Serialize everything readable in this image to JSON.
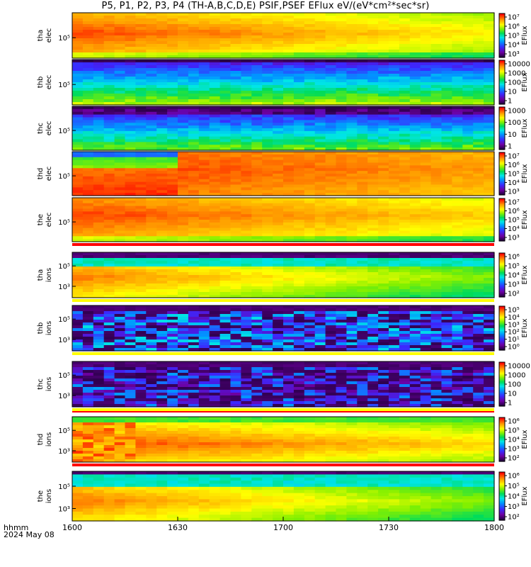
{
  "title": "P5, P1, P2, P3, P4 (TH-A,B,C,D,E) PSIF,PSEF EFlux eV/(eV*cm²*sec*sr)",
  "footer": {
    "line1": "hhmm",
    "line2": "2024 May 08"
  },
  "colorbar_label": "EFlux",
  "chart_data": {
    "type": "heatmap",
    "title": "P5, P1, P2, P3, P4 (TH-A,B,C,D,E) PSIF,PSEF EFlux eV/(eV*cm²*sec*sr)",
    "x_tick_labels": [
      "1600",
      "1630",
      "1700",
      "1730",
      "1800"
    ],
    "x_range_hhmm": [
      "1600",
      "1800"
    ],
    "date": "2024 May 08",
    "colormap": "rainbow (purple-blue-cyan-green-yellow-red)",
    "panels": [
      {
        "probe": "tha",
        "species": "elec",
        "y_ticks": [
          "10⁵"
        ],
        "cbar_ticks": [
          "10⁷",
          "10⁶",
          "10⁵",
          "10⁴",
          "10³"
        ],
        "cbar_label": "EFlux",
        "intensity": "high, red/orange fading to yellow"
      },
      {
        "probe": "thb",
        "species": "elec",
        "y_ticks": [
          "10⁵"
        ],
        "cbar_ticks": [
          "10000",
          "1000",
          "100",
          "10",
          "1"
        ],
        "cbar_label": "EFlux",
        "intensity": "low, blue/green bands"
      },
      {
        "probe": "thc",
        "species": "elec",
        "y_ticks": [
          "10⁵"
        ],
        "cbar_ticks": [
          "1000",
          "100",
          "10",
          "1"
        ],
        "cbar_label": "EFlux",
        "intensity": "low, purple/blue/green bands"
      },
      {
        "probe": "thd",
        "species": "elec",
        "y_ticks": [
          "10⁵"
        ],
        "cbar_ticks": [
          "10⁷",
          "10⁶",
          "10⁵",
          "10⁴",
          "10³"
        ],
        "cbar_label": "EFlux",
        "intensity": "high, red"
      },
      {
        "probe": "the",
        "species": "elec",
        "y_ticks": [
          "10⁵"
        ],
        "cbar_ticks": [
          "10⁷",
          "10⁶",
          "10⁵",
          "10⁴",
          "10³"
        ],
        "cbar_label": "EFlux",
        "intensity": "high, red/orange"
      },
      {
        "probe": "tha",
        "species": "ions",
        "y_ticks": [
          "10⁵",
          "10³"
        ],
        "cbar_ticks": [
          "10⁶",
          "10⁵",
          "10⁴",
          "10³",
          "10²"
        ],
        "cbar_label": "EFlux",
        "intensity": "green top, red/yellow middle"
      },
      {
        "probe": "thb",
        "species": "ions",
        "y_ticks": [
          "10⁵",
          "10³"
        ],
        "cbar_ticks": [
          "10⁵",
          "10⁴",
          "10³",
          "10²",
          "10¹",
          "10⁰"
        ],
        "cbar_label": "EFlux",
        "intensity": "low, purple/blue"
      },
      {
        "probe": "thc",
        "species": "ions",
        "y_ticks": [
          "10⁵",
          "10³"
        ],
        "cbar_ticks": [
          "10000",
          "1000",
          "100",
          "10",
          "1"
        ],
        "cbar_label": "",
        "intensity": "low, sparse purple/blue"
      },
      {
        "probe": "thd",
        "species": "ions",
        "y_ticks": [
          "10⁵",
          "10³"
        ],
        "cbar_ticks": [
          "10⁶",
          "10⁵",
          "10⁴",
          "10³",
          "10²"
        ],
        "cbar_label": "EFlux",
        "intensity": "red/orange/yellow with green top"
      },
      {
        "probe": "the",
        "species": "ions",
        "y_ticks": [
          "10⁵",
          "10³"
        ],
        "cbar_ticks": [
          "10⁶",
          "10⁵",
          "10⁴",
          "10³",
          "10²"
        ],
        "cbar_label": "EFlux",
        "intensity": "green top, red/yellow middle"
      }
    ]
  }
}
